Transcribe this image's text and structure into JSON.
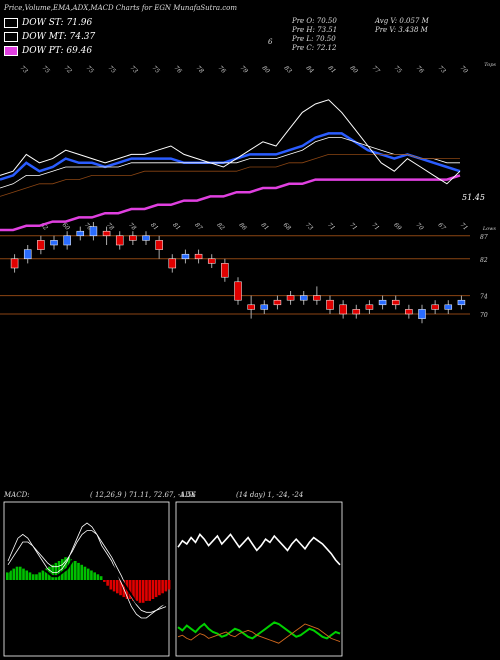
{
  "header": {
    "title": "Price,Volume,EMA,ADX,MACD Charts for EGN  MunafaSutra.com",
    "ohlc_open": "Pre   O: 70.50",
    "ohlc_high": "Pre   H: 73.51",
    "ohlc_low": "Pre   L: 70.50",
    "ohlc_close": "Pre   C: 72.12",
    "avg_volume": "Avg V: 0.057  M",
    "pre_volume": "Pre   V: 3.438  M",
    "marker": "6"
  },
  "legend": {
    "dow_st": {
      "label": "DOW ST: 71.96",
      "color": "#ffffff"
    },
    "dow_mt": {
      "label": "DOW MT: 74.37",
      "color": "#ffffff"
    },
    "dow_pt": {
      "label": "DOW PT: 69.46",
      "color": "#e040e0"
    }
  },
  "colors": {
    "background": "#000000",
    "ema_blue": "#2a5cff",
    "ema_white": "#ffffff",
    "ema_brown": "#8b4513",
    "ema_pink": "#e040e0",
    "candle_up": "#2a6cff",
    "candle_down": "#e00000",
    "level_line": "#8b4513",
    "macd_bar_pos": "#00c000",
    "macd_bar_neg": "#e00000",
    "adx_green": "#00d000",
    "adx_orange": "#d2691e"
  },
  "chart_data": [
    {
      "type": "line",
      "name": "price-ema",
      "title": "",
      "top_labels": [
        "73",
        "75",
        "72",
        "75",
        "75",
        "73",
        "75",
        "76",
        "78",
        "76",
        "79",
        "80",
        "83",
        "84",
        "81",
        "80",
        "77",
        "75",
        "76",
        "73",
        "70"
      ],
      "bottom_labels": [
        "62",
        "60",
        "70",
        "78",
        "78",
        "81",
        "81",
        "87",
        "82",
        "86",
        "81",
        "68",
        "73",
        "71",
        "71",
        "71",
        "69",
        "70",
        "67",
        "71"
      ],
      "right_top": "Tops",
      "right_bottom": "Lows",
      "price_label": "51.45",
      "series": [
        {
          "values": [
            62,
            63,
            66,
            64,
            65,
            67,
            66,
            66,
            65,
            66,
            67,
            67,
            67,
            67,
            66,
            66,
            66,
            66,
            67,
            68,
            68,
            68,
            69,
            70,
            72,
            73,
            73,
            71,
            69,
            68,
            67,
            68,
            67,
            66,
            65,
            64
          ]
        },
        {
          "values": [
            60,
            61,
            63,
            63,
            64,
            65,
            65,
            65,
            65,
            65,
            66,
            66,
            66,
            66,
            66,
            66,
            66,
            66,
            66,
            67,
            67,
            67,
            68,
            69,
            71,
            72,
            72,
            71,
            70,
            69,
            68,
            68,
            67,
            67,
            66,
            66
          ]
        },
        {
          "values": [
            58,
            59,
            60,
            61,
            61,
            62,
            62,
            63,
            63,
            63,
            63,
            64,
            64,
            64,
            64,
            64,
            64,
            64,
            64,
            65,
            65,
            65,
            66,
            66,
            67,
            68,
            68,
            68,
            68,
            68,
            68,
            68,
            67,
            67,
            67,
            67
          ]
        },
        {
          "values": [
            50,
            50,
            51,
            51,
            52,
            52,
            53,
            53,
            54,
            54,
            55,
            55,
            56,
            56,
            57,
            57,
            58,
            58,
            59,
            59,
            60,
            60,
            61,
            61,
            62,
            62,
            62,
            62,
            62,
            62,
            62,
            62,
            62,
            62,
            62,
            63
          ]
        }
      ],
      "price": [
        63,
        64,
        68,
        66,
        67,
        69,
        68,
        67,
        66,
        67,
        68,
        68,
        69,
        70,
        68,
        67,
        66,
        65,
        67,
        69,
        71,
        70,
        74,
        78,
        80,
        81,
        78,
        74,
        70,
        66,
        64,
        67,
        65,
        63,
        61,
        64
      ]
    },
    {
      "type": "bar",
      "name": "candles",
      "levels": [
        87,
        82,
        74,
        70
      ],
      "ylim": [
        60,
        92
      ],
      "candles": [
        {
          "o": 80,
          "c": 82,
          "h": 83,
          "l": 79,
          "up": false
        },
        {
          "o": 82,
          "c": 84,
          "h": 85,
          "l": 81,
          "up": true
        },
        {
          "o": 84,
          "c": 86,
          "h": 87,
          "l": 83,
          "up": false
        },
        {
          "o": 85,
          "c": 86,
          "h": 87,
          "l": 84,
          "up": true
        },
        {
          "o": 85,
          "c": 87,
          "h": 88,
          "l": 84,
          "up": true
        },
        {
          "o": 87,
          "c": 88,
          "h": 89,
          "l": 86,
          "up": true
        },
        {
          "o": 89,
          "c": 87,
          "h": 90,
          "l": 86,
          "up": true
        },
        {
          "o": 88,
          "c": 87,
          "h": 89,
          "l": 85,
          "up": false
        },
        {
          "o": 87,
          "c": 85,
          "h": 88,
          "l": 84,
          "up": false
        },
        {
          "o": 86,
          "c": 87,
          "h": 88,
          "l": 85,
          "up": false
        },
        {
          "o": 87,
          "c": 86,
          "h": 88,
          "l": 85,
          "up": true
        },
        {
          "o": 84,
          "c": 86,
          "h": 87,
          "l": 82,
          "up": false
        },
        {
          "o": 82,
          "c": 80,
          "h": 83,
          "l": 79,
          "up": false
        },
        {
          "o": 82,
          "c": 83,
          "h": 84,
          "l": 81,
          "up": true
        },
        {
          "o": 83,
          "c": 82,
          "h": 84,
          "l": 81,
          "up": false
        },
        {
          "o": 82,
          "c": 81,
          "h": 83,
          "l": 80,
          "up": false
        },
        {
          "o": 81,
          "c": 78,
          "h": 82,
          "l": 77,
          "up": false
        },
        {
          "o": 77,
          "c": 73,
          "h": 78,
          "l": 72,
          "up": false
        },
        {
          "o": 72,
          "c": 71,
          "h": 74,
          "l": 69,
          "up": false
        },
        {
          "o": 71,
          "c": 72,
          "h": 73,
          "l": 70,
          "up": true
        },
        {
          "o": 72,
          "c": 73,
          "h": 74,
          "l": 71,
          "up": false
        },
        {
          "o": 73,
          "c": 74,
          "h": 75,
          "l": 72,
          "up": false
        },
        {
          "o": 74,
          "c": 73,
          "h": 75,
          "l": 72,
          "up": true
        },
        {
          "o": 74,
          "c": 73,
          "h": 76,
          "l": 72,
          "up": false
        },
        {
          "o": 73,
          "c": 71,
          "h": 74,
          "l": 70,
          "up": false
        },
        {
          "o": 72,
          "c": 70,
          "h": 73,
          "l": 69,
          "up": false
        },
        {
          "o": 70,
          "c": 71,
          "h": 72,
          "l": 69,
          "up": false
        },
        {
          "o": 71,
          "c": 72,
          "h": 73,
          "l": 70,
          "up": false
        },
        {
          "o": 72,
          "c": 73,
          "h": 74,
          "l": 71,
          "up": true
        },
        {
          "o": 73,
          "c": 72,
          "h": 74,
          "l": 71,
          "up": false
        },
        {
          "o": 71,
          "c": 70,
          "h": 72,
          "l": 69,
          "up": false
        },
        {
          "o": 69,
          "c": 71,
          "h": 72,
          "l": 68,
          "up": true
        },
        {
          "o": 71,
          "c": 72,
          "h": 73,
          "l": 70,
          "up": false
        },
        {
          "o": 71,
          "c": 72,
          "h": 73,
          "l": 70,
          "up": true
        },
        {
          "o": 72,
          "c": 73,
          "h": 74,
          "l": 71,
          "up": true
        }
      ]
    },
    {
      "type": "bar",
      "name": "macd",
      "title": "MACD",
      "params": "( 12,26,9 ) 71.11, 72.67, -1.56",
      "hist": [
        4,
        5,
        6,
        7,
        7,
        6,
        5,
        4,
        3,
        3,
        4,
        5,
        6,
        7,
        8,
        9,
        10,
        11,
        12,
        12,
        11,
        10,
        9,
        8,
        7,
        6,
        5,
        4,
        3,
        2,
        -1,
        -3,
        -5,
        -6,
        -7,
        -8,
        -9,
        -10,
        -10,
        -11,
        -11,
        -12,
        -12,
        -11,
        -11,
        -10,
        -9,
        -8,
        -7,
        -6,
        -5
      ],
      "lines": [
        {
          "values": [
            10,
            16,
            22,
            24,
            22,
            18,
            14,
            10,
            6,
            4,
            4,
            6,
            10,
            16,
            22,
            28,
            30,
            28,
            24,
            18,
            14,
            10,
            4,
            -2,
            -8,
            -14,
            -18,
            -20,
            -20,
            -18,
            -16,
            -14,
            -12
          ]
        },
        {
          "values": [
            8,
            12,
            16,
            20,
            20,
            18,
            15,
            12,
            9,
            7,
            7,
            8,
            11,
            15,
            20,
            24,
            26,
            26,
            24,
            20,
            16,
            12,
            7,
            2,
            -4,
            -9,
            -13,
            -16,
            -17,
            -17,
            -16,
            -15,
            -14
          ]
        },
        {
          "values": [
            4,
            8,
            12,
            14,
            12,
            10,
            8,
            6,
            4,
            2,
            2,
            4,
            6,
            10,
            14,
            18,
            20,
            20,
            18,
            16,
            12,
            8,
            4,
            0,
            -4,
            -8,
            -12,
            -14,
            -15,
            -15,
            -14,
            -13,
            -12
          ]
        }
      ]
    },
    {
      "type": "line",
      "name": "adx",
      "title": "ADX",
      "params": "(14 day) 1, -24, -24",
      "series": [
        {
          "values": [
            68,
            72,
            70,
            74,
            71,
            76,
            73,
            69,
            72,
            75,
            70,
            73,
            76,
            72,
            68,
            71,
            74,
            70,
            66,
            69,
            73,
            71,
            75,
            72,
            69,
            66,
            70,
            73,
            70,
            67,
            71,
            74,
            72,
            70,
            67,
            64,
            60,
            57
          ]
        },
        {
          "values": [
            18,
            16,
            19,
            17,
            15,
            18,
            20,
            17,
            15,
            14,
            12,
            13,
            15,
            17,
            16,
            14,
            12,
            11,
            13,
            15,
            17,
            19,
            21,
            20,
            18,
            16,
            14,
            12,
            13,
            15,
            17,
            16,
            14,
            12,
            11,
            13,
            15,
            14
          ]
        },
        {
          "values": [
            12,
            13,
            11,
            10,
            12,
            14,
            13,
            11,
            12,
            13,
            14,
            15,
            13,
            12,
            14,
            15,
            16,
            15,
            13,
            12,
            11,
            10,
            9,
            8,
            10,
            12,
            14,
            16,
            18,
            20,
            19,
            18,
            17,
            15,
            13,
            11,
            10,
            9
          ]
        }
      ]
    }
  ]
}
